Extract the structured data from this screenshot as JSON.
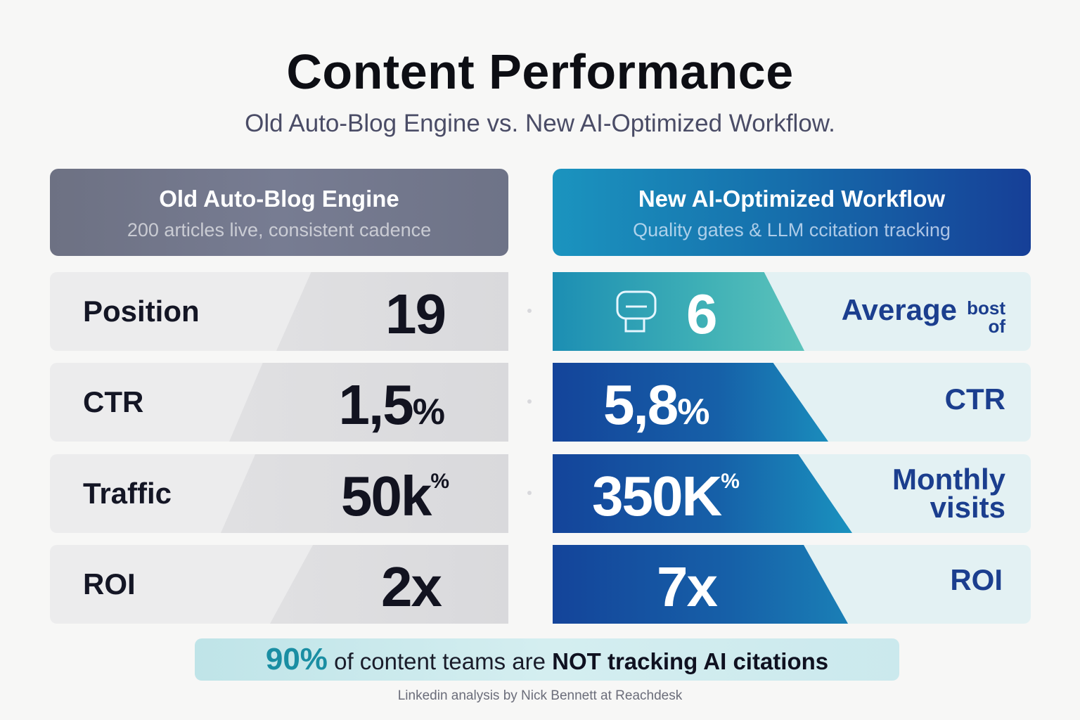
{
  "title": "Content Performance",
  "subtitle": "Old Auto-Blog Engine vs. New AI-Optimized Workflow.",
  "old": {
    "title": "Old Auto-Blog Engine",
    "subtitle": "200 articles live, consistent cadence"
  },
  "new": {
    "title": "New AI-Optimized Workflow",
    "subtitle": "Quality gates & LLM ccitation tracking"
  },
  "rows": [
    {
      "metric": "Position",
      "old_value": "19",
      "new_value": "6",
      "new_label": "Average",
      "new_label_extra": "bost of"
    },
    {
      "metric": "CTR",
      "old_value": "1,5",
      "old_suffix": "%",
      "new_value": "5,8",
      "new_suffix": "%",
      "new_label": "CTR"
    },
    {
      "metric": "Traffic",
      "old_value": "50k",
      "old_suffix": "%",
      "new_value": "350K",
      "new_suffix": "%",
      "new_label": "Monthly",
      "new_label_line2": "visits"
    },
    {
      "metric": "ROI",
      "old_value": "2x",
      "new_value": "7x",
      "new_label": "ROI"
    }
  ],
  "banner": {
    "stat": "90%",
    "text": "of content teams are",
    "emphasis": "NOT tracking AI citations"
  },
  "footer": "Linkedin analysis by Nick Bennett at Reachdesk",
  "colors": {
    "old_header": "#72768b",
    "new_header_start": "#1b94bf",
    "new_header_end": "#163f97",
    "new_label": "#1b3e8e",
    "banner_stat": "#1a8ea3"
  },
  "icons": [
    "robot-icon"
  ]
}
